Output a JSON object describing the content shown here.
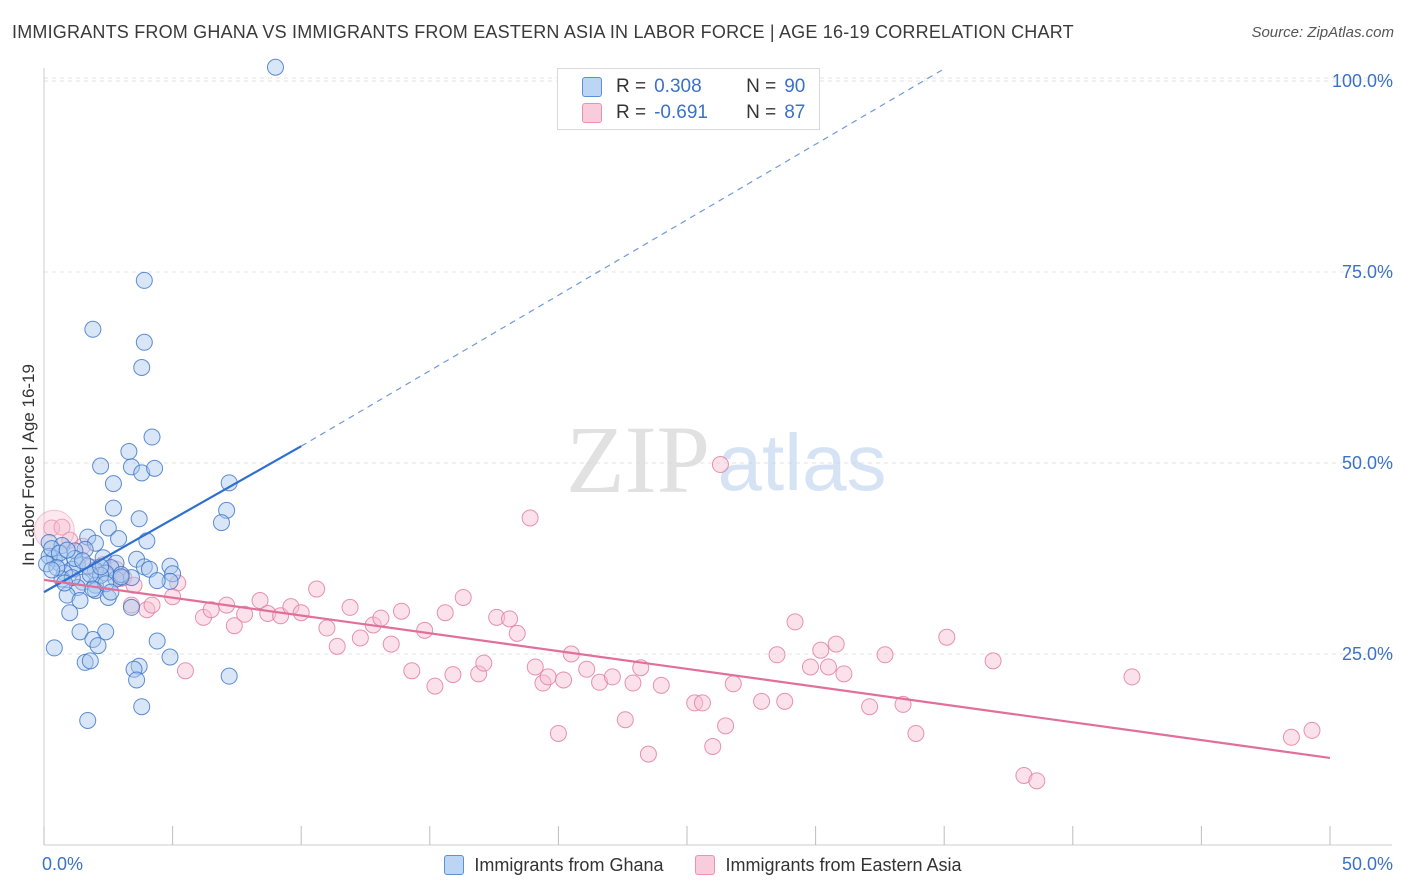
{
  "title": "IMMIGRANTS FROM GHANA VS IMMIGRANTS FROM EASTERN ASIA IN LABOR FORCE | AGE 16-19 CORRELATION CHART",
  "source": "Source: ZipAtlas.com",
  "watermark": {
    "zip": "ZIP",
    "atlas": "atlas"
  },
  "legend": {
    "rows": [
      {
        "r_label": "R =",
        "r_value": "0.308",
        "n_label": "N =",
        "n_value": "90"
      },
      {
        "r_label": "R =",
        "r_value": "-0.691",
        "n_label": "N =",
        "n_value": "87"
      }
    ]
  },
  "colors": {
    "blue": "#3a72c8",
    "blue_fill": "#a9c8ee",
    "blue_line": "#2f6fd0",
    "pink": "#e2789c",
    "pink_fill": "#f6bfd1",
    "pink_line": "#e0709a",
    "axis_text": "#3a72c8",
    "grid": "#e3e3e3"
  },
  "chart_data": {
    "type": "scatter",
    "title": "IMMIGRANTS FROM GHANA VS IMMIGRANTS FROM EASTERN ASIA IN LABOR FORCE | AGE 16-19 CORRELATION CHART",
    "xlabel": "",
    "ylabel": "In Labor Force | Age 16-19",
    "xlim": [
      0,
      50
    ],
    "ylim": [
      0,
      105
    ],
    "x_ticks": [
      0,
      5,
      10,
      15,
      20,
      25,
      30,
      35,
      40,
      45,
      50
    ],
    "x_tick_labels": [
      {
        "value": 0,
        "label": "0.0%"
      },
      {
        "value": 50,
        "label": "50.0%"
      }
    ],
    "y_tick_labels": [
      {
        "value": 100,
        "label": "100.0%"
      },
      {
        "value": 75,
        "label": "75.0%"
      },
      {
        "value": 50,
        "label": "50.0%"
      },
      {
        "value": 25,
        "label": "25.0%"
      }
    ],
    "grid": true,
    "series": [
      {
        "name": "Immigrants from Ghana",
        "color": "blue",
        "trend": {
          "x0": 0,
          "y0": 33.1,
          "x1": 10,
          "y1": 52.2,
          "dash_to_x": 35,
          "dash_to_y": 101.6
        },
        "points": [
          [
            9.0,
            101.8
          ],
          [
            3.9,
            73.9
          ],
          [
            1.9,
            67.5
          ],
          [
            3.9,
            65.8
          ],
          [
            3.8,
            62.5
          ],
          [
            4.2,
            53.4
          ],
          [
            3.3,
            51.5
          ],
          [
            2.2,
            49.6
          ],
          [
            3.4,
            49.5
          ],
          [
            3.8,
            48.7
          ],
          [
            4.3,
            49.3
          ],
          [
            2.7,
            47.3
          ],
          [
            7.2,
            47.4
          ],
          [
            7.1,
            43.8
          ],
          [
            6.9,
            42.2
          ],
          [
            2.7,
            44.1
          ],
          [
            3.7,
            42.7
          ],
          [
            2.5,
            41.5
          ],
          [
            2.9,
            40.1
          ],
          [
            4.0,
            39.8
          ],
          [
            1.7,
            40.3
          ],
          [
            2.0,
            39.5
          ],
          [
            0.2,
            39.6
          ],
          [
            0.7,
            39.2
          ],
          [
            1.6,
            38.7
          ],
          [
            0.4,
            37.5
          ],
          [
            0.6,
            36.9
          ],
          [
            0.2,
            37.8
          ],
          [
            1.3,
            36.7
          ],
          [
            2.3,
            37.6
          ],
          [
            3.6,
            37.4
          ],
          [
            2.8,
            36.9
          ],
          [
            2.6,
            36.3
          ],
          [
            2.0,
            36.0
          ],
          [
            1.7,
            36.5
          ],
          [
            1.1,
            36.1
          ],
          [
            0.8,
            35.6
          ],
          [
            0.7,
            34.8
          ],
          [
            1.5,
            34.4
          ],
          [
            2.0,
            34.0
          ],
          [
            2.8,
            34.8
          ],
          [
            3.4,
            35.0
          ],
          [
            4.9,
            36.5
          ],
          [
            5.0,
            35.5
          ],
          [
            1.3,
            33.7
          ],
          [
            2.0,
            33.3
          ],
          [
            0.9,
            32.7
          ],
          [
            1.4,
            32.0
          ],
          [
            2.5,
            32.4
          ],
          [
            1.0,
            30.4
          ],
          [
            3.4,
            31.1
          ],
          [
            4.9,
            34.5
          ],
          [
            3.0,
            35.4
          ],
          [
            2.4,
            35.6
          ],
          [
            1.4,
            27.9
          ],
          [
            2.4,
            27.9
          ],
          [
            1.9,
            26.9
          ],
          [
            2.1,
            26.1
          ],
          [
            4.4,
            26.7
          ],
          [
            0.4,
            25.8
          ],
          [
            1.6,
            23.9
          ],
          [
            1.8,
            24.1
          ],
          [
            4.9,
            24.6
          ],
          [
            3.7,
            23.4
          ],
          [
            3.5,
            23.0
          ],
          [
            3.6,
            21.6
          ],
          [
            7.2,
            22.1
          ],
          [
            3.8,
            18.1
          ],
          [
            1.7,
            16.3
          ],
          [
            0.3,
            38.8
          ],
          [
            0.6,
            38.2
          ],
          [
            1.2,
            38.5
          ],
          [
            2.2,
            35.3
          ],
          [
            0.1,
            36.8
          ],
          [
            1.8,
            35.4
          ],
          [
            2.4,
            34.2
          ],
          [
            0.5,
            36.3
          ],
          [
            1.2,
            37.5
          ],
          [
            3.9,
            36.4
          ],
          [
            4.1,
            36.1
          ],
          [
            0.9,
            38.6
          ],
          [
            1.5,
            37.2
          ],
          [
            2.2,
            36.4
          ],
          [
            0.3,
            36.0
          ],
          [
            1.1,
            35.0
          ],
          [
            2.6,
            33.1
          ],
          [
            1.9,
            33.5
          ],
          [
            3.0,
            35.1
          ],
          [
            0.8,
            34.3
          ],
          [
            4.4,
            34.6
          ]
        ]
      },
      {
        "name": "Immigrants from Eastern Asia",
        "color": "pink",
        "trend": {
          "x0": 0,
          "y0": 34.7,
          "x1": 50,
          "y1": 11.4
        },
        "points": [
          [
            0.3,
            41.5
          ],
          [
            0.7,
            41.6
          ],
          [
            1.0,
            39.9
          ],
          [
            1.5,
            39.1
          ],
          [
            1.8,
            36.4
          ],
          [
            2.3,
            36.7
          ],
          [
            2.8,
            36.1
          ],
          [
            3.0,
            34.9
          ],
          [
            3.1,
            35.0
          ],
          [
            3.5,
            34.0
          ],
          [
            3.4,
            31.4
          ],
          [
            4.0,
            30.8
          ],
          [
            4.2,
            31.4
          ],
          [
            5.2,
            34.3
          ],
          [
            5.0,
            32.5
          ],
          [
            5.5,
            22.8
          ],
          [
            6.2,
            29.8
          ],
          [
            6.5,
            30.8
          ],
          [
            7.1,
            31.4
          ],
          [
            7.4,
            28.7
          ],
          [
            7.8,
            30.2
          ],
          [
            8.4,
            32.0
          ],
          [
            8.7,
            30.3
          ],
          [
            9.2,
            30.0
          ],
          [
            9.6,
            31.2
          ],
          [
            10.0,
            30.4
          ],
          [
            10.6,
            33.5
          ],
          [
            11.0,
            28.4
          ],
          [
            11.4,
            26.0
          ],
          [
            11.9,
            31.1
          ],
          [
            12.3,
            27.1
          ],
          [
            12.8,
            28.8
          ],
          [
            13.1,
            29.7
          ],
          [
            13.5,
            26.3
          ],
          [
            13.9,
            30.6
          ],
          [
            14.3,
            22.8
          ],
          [
            14.8,
            28.1
          ],
          [
            15.2,
            20.8
          ],
          [
            15.6,
            30.4
          ],
          [
            15.9,
            22.3
          ],
          [
            16.3,
            32.4
          ],
          [
            16.9,
            22.4
          ],
          [
            17.1,
            23.8
          ],
          [
            17.6,
            29.8
          ],
          [
            18.1,
            29.6
          ],
          [
            18.4,
            27.7
          ],
          [
            19.1,
            23.3
          ],
          [
            19.4,
            21.2
          ],
          [
            19.6,
            22.0
          ],
          [
            20.0,
            14.6
          ],
          [
            20.2,
            21.6
          ],
          [
            20.5,
            25.0
          ],
          [
            21.1,
            23.0
          ],
          [
            21.6,
            21.3
          ],
          [
            22.1,
            22.0
          ],
          [
            22.6,
            16.4
          ],
          [
            22.9,
            21.2
          ],
          [
            23.2,
            23.2
          ],
          [
            23.5,
            11.9
          ],
          [
            24.0,
            20.9
          ],
          [
            25.3,
            18.6
          ],
          [
            25.6,
            18.6
          ],
          [
            26.0,
            12.9
          ],
          [
            26.5,
            15.6
          ],
          [
            26.8,
            21.1
          ],
          [
            27.9,
            18.8
          ],
          [
            28.5,
            24.9
          ],
          [
            28.8,
            18.8
          ],
          [
            29.2,
            29.2
          ],
          [
            29.8,
            23.3
          ],
          [
            30.2,
            25.5
          ],
          [
            30.5,
            23.3
          ],
          [
            30.8,
            26.3
          ],
          [
            31.1,
            22.4
          ],
          [
            32.1,
            18.1
          ],
          [
            32.7,
            24.9
          ],
          [
            33.4,
            18.4
          ],
          [
            33.9,
            14.6
          ],
          [
            35.1,
            27.2
          ],
          [
            36.9,
            24.1
          ],
          [
            38.1,
            9.1
          ],
          [
            38.6,
            8.4
          ],
          [
            42.3,
            22.0
          ],
          [
            48.5,
            14.1
          ],
          [
            49.3,
            15.0
          ],
          [
            18.9,
            42.8
          ],
          [
            26.3,
            49.8
          ]
        ]
      }
    ]
  },
  "bottom_legend": {
    "items": [
      {
        "label": "Immigrants from Ghana"
      },
      {
        "label": "Immigrants from Eastern Asia"
      }
    ]
  }
}
